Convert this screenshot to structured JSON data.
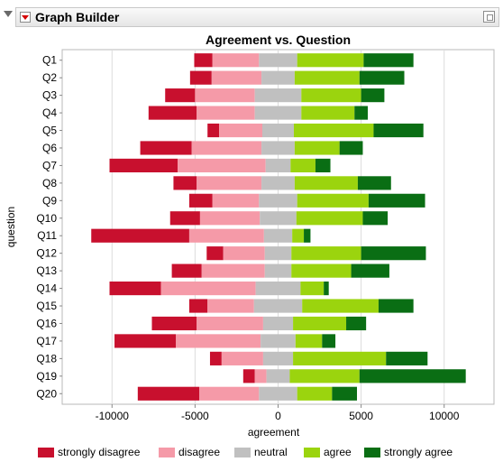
{
  "panel": {
    "title": "Graph Builder"
  },
  "chart_data": {
    "type": "bar",
    "title": "Agreement vs. Question",
    "xlabel": "agreement",
    "ylabel": "question",
    "xlim": [
      -13000,
      13000
    ],
    "xticks": [
      -10000,
      -5000,
      0,
      5000,
      10000
    ],
    "xtick_labels": [
      "-10000",
      "-5000",
      "0",
      "5000",
      "10000"
    ],
    "grid": true,
    "legend_position": "bottom",
    "categories": [
      "Q1",
      "Q2",
      "Q3",
      "Q4",
      "Q5",
      "Q6",
      "Q7",
      "Q8",
      "Q9",
      "Q10",
      "Q11",
      "Q12",
      "Q13",
      "Q14",
      "Q15",
      "Q16",
      "Q17",
      "Q18",
      "Q19",
      "Q20"
    ],
    "series": [
      {
        "name": "strongly disagree",
        "color": "#c8102e",
        "values": [
          1100,
          1300,
          1800,
          2900,
          700,
          3100,
          4100,
          1400,
          1400,
          1800,
          5900,
          1000,
          1800,
          3100,
          1100,
          2700,
          3700,
          700,
          700,
          3700
        ]
      },
      {
        "name": "disagree",
        "color": "#f59aa8",
        "values": [
          2800,
          3000,
          3600,
          3500,
          2600,
          4200,
          5300,
          3900,
          2800,
          3600,
          4500,
          2500,
          3800,
          5700,
          2800,
          4000,
          5100,
          2500,
          700,
          3600
        ]
      },
      {
        "name": "neutral",
        "color": "#c0c0c0",
        "values": [
          2300,
          2000,
          2800,
          2800,
          1900,
          2000,
          1500,
          2000,
          2300,
          2200,
          1700,
          1600,
          1600,
          2700,
          2900,
          1800,
          2100,
          1800,
          1400,
          2300
        ]
      },
      {
        "name": "agree",
        "color": "#9bd40e",
        "values": [
          4000,
          3900,
          3600,
          3200,
          4800,
          2700,
          1500,
          3800,
          4300,
          4000,
          700,
          4200,
          3600,
          1400,
          4600,
          3200,
          1600,
          5600,
          4200,
          2100
        ]
      },
      {
        "name": "strongly agree",
        "color": "#0a6e14",
        "values": [
          3000,
          2700,
          1400,
          800,
          3000,
          1400,
          900,
          2000,
          3400,
          1500,
          400,
          3900,
          2300,
          300,
          2100,
          1200,
          800,
          2500,
          6400,
          1500
        ]
      }
    ]
  }
}
